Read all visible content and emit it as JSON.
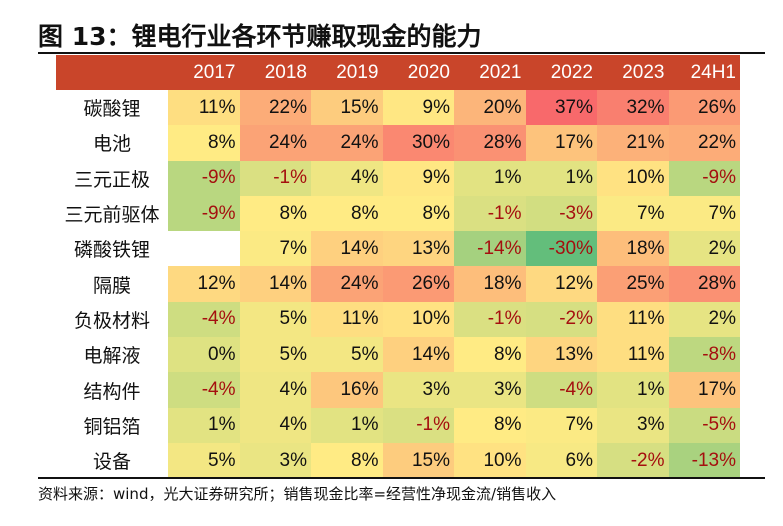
{
  "title": "图 13：锂电行业各环节赚取现金的能力",
  "source": "资料来源：wind，光大证券研究所；销售现金比率=经营性净现金流/销售收入",
  "chart_data": {
    "type": "heatmap",
    "title": "图 13：锂电行业各环节赚取现金的能力",
    "columns": [
      "2017",
      "2018",
      "2019",
      "2020",
      "2021",
      "2022",
      "2023",
      "24H1"
    ],
    "rows": [
      "碳酸锂",
      "电池",
      "三元正极",
      "三元前驱体",
      "磷酸铁锂",
      "隔膜",
      "负极材料",
      "电解液",
      "结构件",
      "铜铝箔",
      "设备"
    ],
    "unit": "%",
    "values": [
      [
        11,
        22,
        15,
        9,
        20,
        37,
        32,
        26
      ],
      [
        8,
        24,
        24,
        30,
        28,
        17,
        21,
        22
      ],
      [
        -9,
        -1,
        4,
        9,
        1,
        1,
        10,
        -9
      ],
      [
        -9,
        8,
        8,
        8,
        -1,
        -3,
        7,
        7
      ],
      [
        null,
        7,
        14,
        13,
        -14,
        -30,
        18,
        2
      ],
      [
        12,
        14,
        24,
        26,
        18,
        12,
        25,
        28
      ],
      [
        -4,
        5,
        11,
        10,
        -1,
        -2,
        11,
        2
      ],
      [
        0,
        5,
        5,
        14,
        8,
        13,
        11,
        -8
      ],
      [
        -4,
        4,
        16,
        3,
        3,
        -4,
        1,
        17
      ],
      [
        1,
        4,
        1,
        -1,
        8,
        7,
        3,
        -5
      ],
      [
        5,
        3,
        8,
        15,
        10,
        6,
        -2,
        -13
      ]
    ],
    "color_scale": {
      "low": "#63be7b",
      "mid": "#ffeb84",
      "high": "#f8696b"
    },
    "header_color": "#c9452a",
    "negative_text_color": "#a50f0f"
  }
}
